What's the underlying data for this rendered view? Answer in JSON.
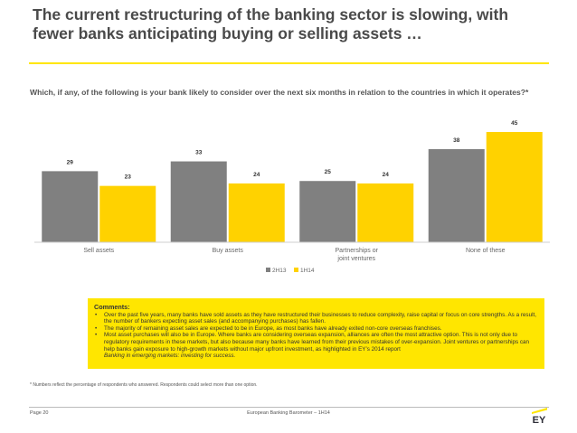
{
  "title": "The current restructuring of the banking sector is slowing, with fewer banks anticipating buying or selling assets …",
  "question": "Which, if any, of the following is your bank likely to consider over the next six months in relation to the countries in which it operates?*",
  "chart_data": {
    "type": "bar",
    "categories": [
      "Sell assets",
      "Buy assets",
      "Partnerships or joint ventures",
      "None of these"
    ],
    "category_lines": [
      [
        "Sell assets"
      ],
      [
        "Buy assets"
      ],
      [
        "Partnerships or",
        "joint ventures"
      ],
      [
        "None of these"
      ]
    ],
    "series": [
      {
        "name": "2H13",
        "values": [
          29,
          33,
          25,
          38
        ],
        "color": "#808080"
      },
      {
        "name": "1H14",
        "values": [
          23,
          24,
          24,
          45
        ],
        "color": "#ffd200"
      }
    ],
    "ylim": [
      0,
      50
    ],
    "legend": "bottom-center",
    "grid": false
  },
  "comments": {
    "heading": "Comments:",
    "bullets": [
      "Over the past five years, many banks have sold assets as they have restructured their businesses to reduce complexity, raise capital or focus on core strengths. As a result, the number of bankers expecting asset sales (and accompanying purchases) has fallen.",
      "The majority of remaining asset sales are expected to be in Europe, as most banks have already exited non-core overseas franchises.",
      "Most asset purchases will also be in Europe. Where banks are considering overseas expansion, alliances are often the most attractive option. This is not only due to regulatory requirements in these markets, but also because many banks have learned from their previous mistakes of over-expansion. Joint ventures or partnerships can help banks gain exposure to high-growth markets without major upfront investment, as highlighted in EY’s 2014 report"
    ],
    "report": "Banking in emerging markets: investing for success."
  },
  "footnote": "* Numbers reflect the percentage of respondents who answered. Respondents could select more than one option.",
  "footer": {
    "page": "Page 20",
    "title": "European Banking Barometer – 1H14",
    "logo_text": "EY"
  },
  "colors": {
    "accent": "#ffe600",
    "bar_dark": "#808080",
    "bar_yellow": "#ffd200"
  }
}
